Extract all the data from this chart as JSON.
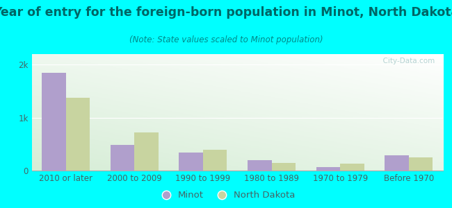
{
  "title": "Year of entry for the foreign-born population in Minot, North Dakota",
  "subtitle": "(Note: State values scaled to Minot population)",
  "categories": [
    "2010 or later",
    "2000 to 2009",
    "1990 to 1999",
    "1980 to 1989",
    "1970 to 1979",
    "Before 1970"
  ],
  "minot_values": [
    1850,
    490,
    340,
    195,
    65,
    290
  ],
  "nd_values": [
    1380,
    720,
    390,
    140,
    125,
    255
  ],
  "minot_color": "#b09fcc",
  "nd_color": "#c8d4a0",
  "bar_width": 0.35,
  "ylim": [
    0,
    2200
  ],
  "yticks": [
    0,
    1000,
    2000
  ],
  "ytick_labels": [
    "0",
    "1k",
    "2k"
  ],
  "outer_bg": "#00ffff",
  "title_color": "#006666",
  "subtitle_color": "#008888",
  "legend_labels": [
    "Minot",
    "North Dakota"
  ],
  "title_fontsize": 12.5,
  "subtitle_fontsize": 8.5,
  "tick_fontsize": 8.5,
  "legend_fontsize": 9.5
}
